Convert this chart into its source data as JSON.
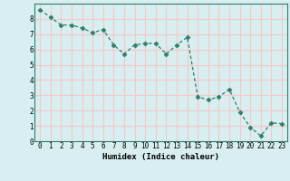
{
  "x": [
    0,
    1,
    2,
    3,
    4,
    5,
    6,
    7,
    8,
    9,
    10,
    11,
    12,
    13,
    14,
    15,
    16,
    17,
    18,
    19,
    20,
    21,
    22,
    23
  ],
  "y": [
    8.6,
    8.1,
    7.6,
    7.6,
    7.4,
    7.1,
    7.3,
    6.3,
    5.7,
    6.3,
    6.4,
    6.4,
    5.7,
    6.3,
    6.8,
    2.9,
    2.7,
    2.9,
    3.4,
    1.9,
    0.9,
    0.35,
    1.2,
    1.15
  ],
  "line_color": "#2e7d6e",
  "marker": "D",
  "marker_size": 2.5,
  "xlabel": "Humidex (Indice chaleur)",
  "ylim": [
    0,
    9
  ],
  "xlim": [
    -0.5,
    23.5
  ],
  "yticks": [
    0,
    1,
    2,
    3,
    4,
    5,
    6,
    7,
    8
  ],
  "xticks": [
    0,
    1,
    2,
    3,
    4,
    5,
    6,
    7,
    8,
    9,
    10,
    11,
    12,
    13,
    14,
    15,
    16,
    17,
    18,
    19,
    20,
    21,
    22,
    23
  ],
  "bg_color": "#d8eef0",
  "grid_color": "#f5c8c8",
  "label_fontsize": 6.5,
  "tick_fontsize": 5.5
}
